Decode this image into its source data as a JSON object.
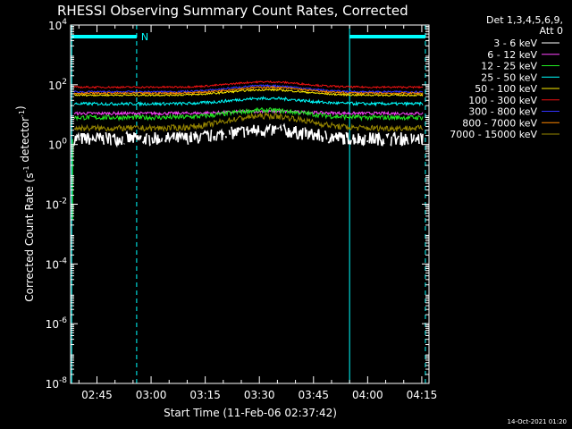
{
  "chart_data": {
    "type": "line",
    "title": "RHESSI Observing Summary Count Rates, Corrected",
    "xlabel": "Start Time (11-Feb-06 02:37:42)",
    "ylabel": "Corrected Count Rate (s⁻¹ detector⁻¹)",
    "y_scale": "log",
    "ylim": [
      1e-08,
      10000
    ],
    "y_ticks": [
      {
        "value": 10000,
        "base": "10",
        "exp": "4"
      },
      {
        "value": 100,
        "base": "10",
        "exp": "2"
      },
      {
        "value": 1,
        "base": "10",
        "exp": "0"
      },
      {
        "value": 0.01,
        "base": "10",
        "exp": "-2"
      },
      {
        "value": 0.0001,
        "base": "10",
        "exp": "-4"
      },
      {
        "value": 1e-06,
        "base": "10",
        "exp": "-6"
      },
      {
        "value": 1e-08,
        "base": "10",
        "exp": "-8"
      }
    ],
    "xlim": [
      "02:37:42",
      "04:17:00"
    ],
    "x_ticks": [
      {
        "label": "02:45",
        "value": "02:45:00"
      },
      {
        "label": "03:00",
        "value": "03:00:00"
      },
      {
        "label": "03:15",
        "value": "03:15:00"
      },
      {
        "label": "03:30",
        "value": "03:30:00"
      },
      {
        "label": "03:45",
        "value": "03:45:00"
      },
      {
        "label": "04:00",
        "value": "04:00:00"
      },
      {
        "label": "04:15",
        "value": "04:15:00"
      }
    ],
    "legend": {
      "placement": "right",
      "header": [
        "Det 1,3,4,5,6,9,",
        "Att 0"
      ]
    },
    "series": [
      {
        "name": "3 - 6 keV",
        "color": "#ffffff",
        "base": 1.55,
        "peak": 3.0,
        "noise": 0.22,
        "dropout": 1
      },
      {
        "name": "6 - 12 keV",
        "color": "#ff44ff",
        "base": 11,
        "peak": 13,
        "noise": 0.05
      },
      {
        "name": "12 - 25 keV",
        "color": "#22ee22",
        "base": 8,
        "peak": 14,
        "noise": 0.08
      },
      {
        "name": "25 - 50 keV",
        "color": "#00ffff",
        "base": 23,
        "peak": 35,
        "noise": 0.05
      },
      {
        "name": "50 - 100 keV",
        "color": "#ffee00",
        "base": 45,
        "peak": 68,
        "noise": 0.03
      },
      {
        "name": "100 - 300 keV",
        "color": "#ee1111",
        "base": 83,
        "peak": 125,
        "noise": 0.03
      },
      {
        "name": "300 - 800 keV",
        "color": "#3333ff",
        "base": 58,
        "peak": 93,
        "noise": 0.03
      },
      {
        "name": "800 - 7000 keV",
        "color": "#ff8800",
        "base": 52,
        "peak": 82,
        "noise": 0.03
      },
      {
        "name": "7000 - 15000 keV",
        "color": "#998800",
        "base": 3.5,
        "peak": 9,
        "noise": 0.1
      }
    ],
    "markers": [
      {
        "type": "night",
        "start": "02:38:00",
        "end": "02:56:00",
        "label": "N"
      },
      {
        "type": "night",
        "start": "03:55:00",
        "end": "04:16:00",
        "label": ""
      }
    ],
    "flare_center": "03:32:00",
    "timestamp": "14-Oct-2021 01:20"
  }
}
